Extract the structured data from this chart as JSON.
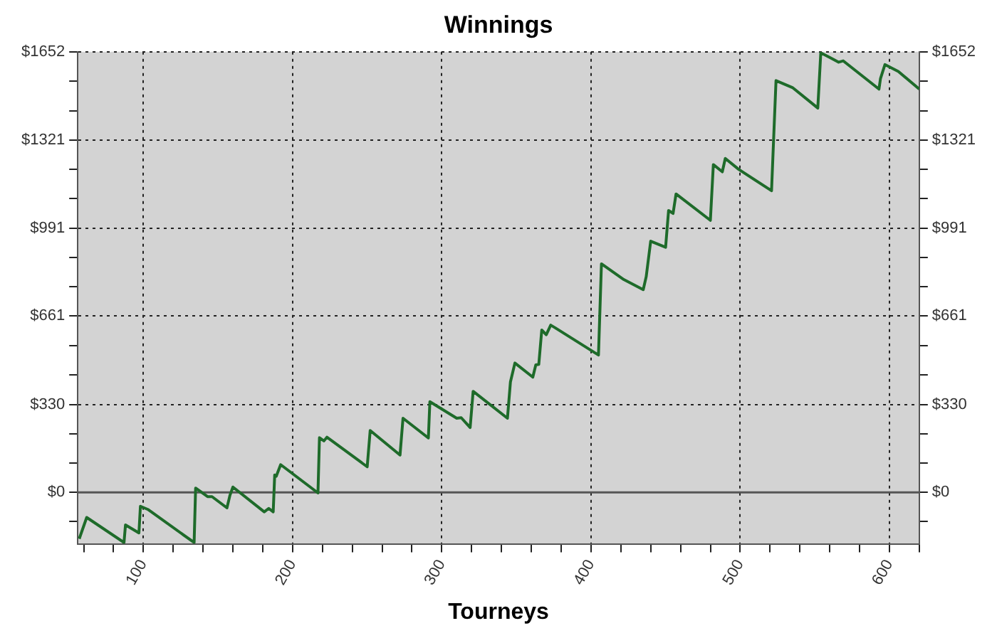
{
  "chart_data": {
    "type": "line",
    "title": "Winnings",
    "xlabel": "Tourneys",
    "x": [
      57,
      62,
      87,
      88,
      97,
      98,
      103,
      134,
      135,
      143,
      146,
      156,
      158,
      160,
      181,
      184,
      187,
      188,
      189,
      192,
      217,
      218,
      221,
      223,
      250,
      252,
      272,
      274,
      291,
      292,
      310,
      313,
      319,
      321,
      344,
      346,
      349,
      361,
      363,
      365,
      367,
      370,
      373,
      376,
      405,
      407,
      422,
      435,
      437,
      440,
      450,
      452,
      455,
      457,
      480,
      482,
      488,
      490,
      499,
      521,
      522,
      524,
      535,
      552,
      554,
      560,
      566,
      569,
      593,
      594,
      597,
      606,
      620
    ],
    "series": [
      {
        "color": "#1e6b2a",
        "values": [
          -174,
          -94,
          -188,
          -122,
          -152,
          -52,
          -64,
          -188,
          16,
          -16,
          -16,
          -58,
          -11,
          20,
          -73,
          -60,
          -73,
          65,
          60,
          104,
          -2,
          205,
          193,
          207,
          96,
          232,
          140,
          278,
          204,
          340,
          278,
          280,
          243,
          379,
          278,
          414,
          485,
          432,
          478,
          480,
          609,
          591,
          627,
          617,
          515,
          857,
          798,
          760,
          809,
          942,
          919,
          1057,
          1046,
          1119,
          1020,
          1229,
          1202,
          1252,
          1211,
          1131,
          1270,
          1544,
          1518,
          1441,
          1648,
          1631,
          1613,
          1618,
          1512,
          1551,
          1604,
          1578,
          1512
        ]
      }
    ],
    "xlim": [
      56,
      620
    ],
    "xticks": [
      {
        "value": 60,
        "label": null
      },
      {
        "value": 80,
        "label": null
      },
      100,
      {
        "value": 120,
        "label": null
      },
      {
        "value": 140,
        "label": null
      },
      {
        "value": 160,
        "label": null
      },
      {
        "value": 180,
        "label": null
      },
      200,
      {
        "value": 220,
        "label": null
      },
      {
        "value": 240,
        "label": null
      },
      {
        "value": 260,
        "label": null
      },
      {
        "value": 280,
        "label": null
      },
      300,
      {
        "value": 320,
        "label": null
      },
      {
        "value": 340,
        "label": null
      },
      {
        "value": 360,
        "label": null
      },
      {
        "value": 380,
        "label": null
      },
      400,
      {
        "value": 420,
        "label": null
      },
      {
        "value": 440,
        "label": null
      },
      {
        "value": 460,
        "label": null
      },
      {
        "value": 480,
        "label": null
      },
      500,
      {
        "value": 520,
        "label": null
      },
      {
        "value": 540,
        "label": null
      },
      {
        "value": 560,
        "label": null
      },
      {
        "value": 580,
        "label": null
      },
      600,
      {
        "value": 620,
        "label": null
      }
    ],
    "ylim": [
      -193,
      1652
    ],
    "yticks": [
      {
        "value": -110,
        "label": null
      },
      {
        "value": 0,
        "label": "$0"
      },
      {
        "value": 110,
        "label": null
      },
      {
        "value": 220,
        "label": null
      },
      {
        "value": 330,
        "label": "$330"
      },
      {
        "value": 440,
        "label": null
      },
      {
        "value": 551,
        "label": null
      },
      {
        "value": 661,
        "label": "$661"
      },
      {
        "value": 771,
        "label": null
      },
      {
        "value": 881,
        "label": null
      },
      {
        "value": 991,
        "label": "$991"
      },
      {
        "value": 1101,
        "label": null
      },
      {
        "value": 1211,
        "label": null
      },
      {
        "value": 1321,
        "label": "$1321"
      },
      {
        "value": 1431,
        "label": null
      },
      {
        "value": 1542,
        "label": null
      },
      {
        "value": 1652,
        "label": "$1652"
      }
    ],
    "y2lim": [
      -193,
      1652
    ],
    "y2ticks": [
      {
        "value": -110,
        "label": null
      },
      {
        "value": 0,
        "label": "$0"
      },
      {
        "value": 110,
        "label": null
      },
      {
        "value": 220,
        "label": null
      },
      {
        "value": 330,
        "label": "$330"
      },
      {
        "value": 440,
        "label": null
      },
      {
        "value": 551,
        "label": null
      },
      {
        "value": 661,
        "label": "$661"
      },
      {
        "value": 771,
        "label": null
      },
      {
        "value": 881,
        "label": null
      },
      {
        "value": 991,
        "label": "$991"
      },
      {
        "value": 1101,
        "label": null
      },
      {
        "value": 1211,
        "label": null
      },
      {
        "value": 1321,
        "label": "$1321"
      },
      {
        "value": 1431,
        "label": null
      },
      {
        "value": 1542,
        "label": null
      },
      {
        "value": 1652,
        "label": "$1652"
      }
    ],
    "ref_lines": [
      {
        "axis": "y",
        "value": 0,
        "color": "#555555"
      }
    ],
    "grid": true,
    "legend": false,
    "marker": "none",
    "line_style": "solid"
  }
}
